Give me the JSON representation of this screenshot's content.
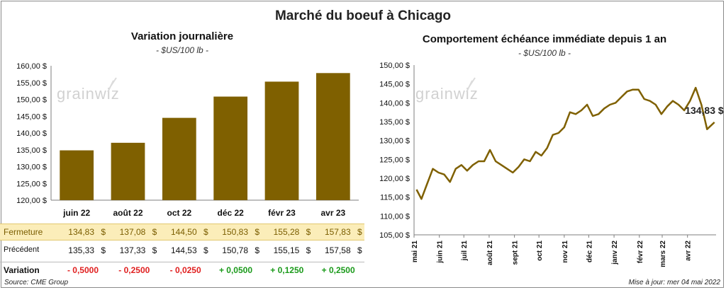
{
  "main_title": "Marché du boeuf à Chicago",
  "watermark": "grainwiz",
  "left_panel": {
    "title": "Variation  journalière",
    "subtitle": "- $US/100 lb -"
  },
  "right_panel": {
    "title": "Comportement  échéance immédiate depuis 1 an",
    "subtitle": "- $US/100 lb -",
    "last_label": "134,83 $"
  },
  "table": {
    "fermeture_label": "Fermeture",
    "precedent_label": "Précédent",
    "variation_label": "Variation",
    "unit": "$",
    "fermeture": [
      "134,83",
      "137,08",
      "144,50",
      "150,83",
      "155,28",
      "157,83"
    ],
    "precedent": [
      "135,33",
      "137,33",
      "144,53",
      "150,78",
      "155,15",
      "157,58"
    ],
    "variation": [
      "- 0,5000",
      "- 0,2500",
      "- 0,0250",
      "+ 0,0500",
      "+ 0,1250",
      "+ 0,2500"
    ]
  },
  "footer": {
    "source": "Source: CME Group",
    "update": "Mise à jour: mer 04 mai 2022"
  },
  "colors": {
    "bar": "#7f6000",
    "line": "#7f6000",
    "fermeture_bg": "#fbedb9",
    "negative": "#e02020",
    "positive": "#1a9a1a"
  },
  "chart_data": [
    {
      "type": "bar",
      "title": "Variation  journalière",
      "subtitle": "- $US/100 lb -",
      "categories": [
        "juin 22",
        "août 22",
        "oct 22",
        "déc 22",
        "févr 23",
        "avr 23"
      ],
      "values": [
        134.83,
        137.08,
        144.5,
        150.83,
        155.28,
        157.83
      ],
      "ylim": [
        120,
        160
      ],
      "yticks": [
        "120,00 $",
        "125,00 $",
        "130,00 $",
        "135,00 $",
        "140,00 $",
        "145,00 $",
        "150,00 $",
        "155,00 $",
        "160,00 $"
      ],
      "grid": false,
      "legend": "none"
    },
    {
      "type": "line",
      "title": "Comportement  échéance immédiate depuis 1 an",
      "subtitle": "- $US/100 lb -",
      "ylim": [
        105,
        150
      ],
      "yticks": [
        "105,00 $",
        "110,00 $",
        "115,00 $",
        "120,00 $",
        "125,00 $",
        "130,00 $",
        "135,00 $",
        "140,00 $",
        "145,00 $",
        "150,00 $"
      ],
      "xticks": [
        "mai 21",
        "juin 21",
        "juil 21",
        "août 21",
        "sept 21",
        "oct 21",
        "nov 21",
        "déc 21",
        "janv 22",
        "févr 22",
        "mars 22",
        "avr 22"
      ],
      "x": [
        "2021-05-04",
        "2021-05-10",
        "2021-05-17",
        "2021-05-24",
        "2021-05-31",
        "2021-06-07",
        "2021-06-14",
        "2021-06-21",
        "2021-06-28",
        "2021-07-05",
        "2021-07-12",
        "2021-07-19",
        "2021-07-26",
        "2021-08-02",
        "2021-08-09",
        "2021-08-16",
        "2021-08-23",
        "2021-08-30",
        "2021-09-06",
        "2021-09-13",
        "2021-09-20",
        "2021-09-27",
        "2021-10-04",
        "2021-10-11",
        "2021-10-18",
        "2021-10-25",
        "2021-11-01",
        "2021-11-08",
        "2021-11-15",
        "2021-11-22",
        "2021-11-29",
        "2021-12-06",
        "2021-12-13",
        "2021-12-20",
        "2021-12-27",
        "2022-01-03",
        "2022-01-10",
        "2022-01-17",
        "2022-01-24",
        "2022-01-31",
        "2022-02-07",
        "2022-02-14",
        "2022-02-21",
        "2022-02-28",
        "2022-03-07",
        "2022-03-14",
        "2022-03-21",
        "2022-03-28",
        "2022-04-04",
        "2022-04-11",
        "2022-04-18",
        "2022-04-25",
        "2022-05-04"
      ],
      "series": [
        {
          "values": [
            117.0,
            114.5,
            118.5,
            122.5,
            121.5,
            121.0,
            119.0,
            122.5,
            123.5,
            122.0,
            123.5,
            124.5,
            124.5,
            127.5,
            124.5,
            123.5,
            122.5,
            121.5,
            123.0,
            125.0,
            124.5,
            127.0,
            126.0,
            128.0,
            131.5,
            132.0,
            133.5,
            137.5,
            137.0,
            138.0,
            139.5,
            136.5,
            137.0,
            138.5,
            139.5,
            140.0,
            141.5,
            143.0,
            143.5,
            143.5,
            141.0,
            140.5,
            139.5,
            137.0,
            139.0,
            140.5,
            139.5,
            138.0,
            140.5,
            144.0,
            139.5,
            133.0,
            134.83
          ]
        }
      ],
      "last_value_label": "134,83 $",
      "grid": false,
      "legend": "none"
    }
  ]
}
